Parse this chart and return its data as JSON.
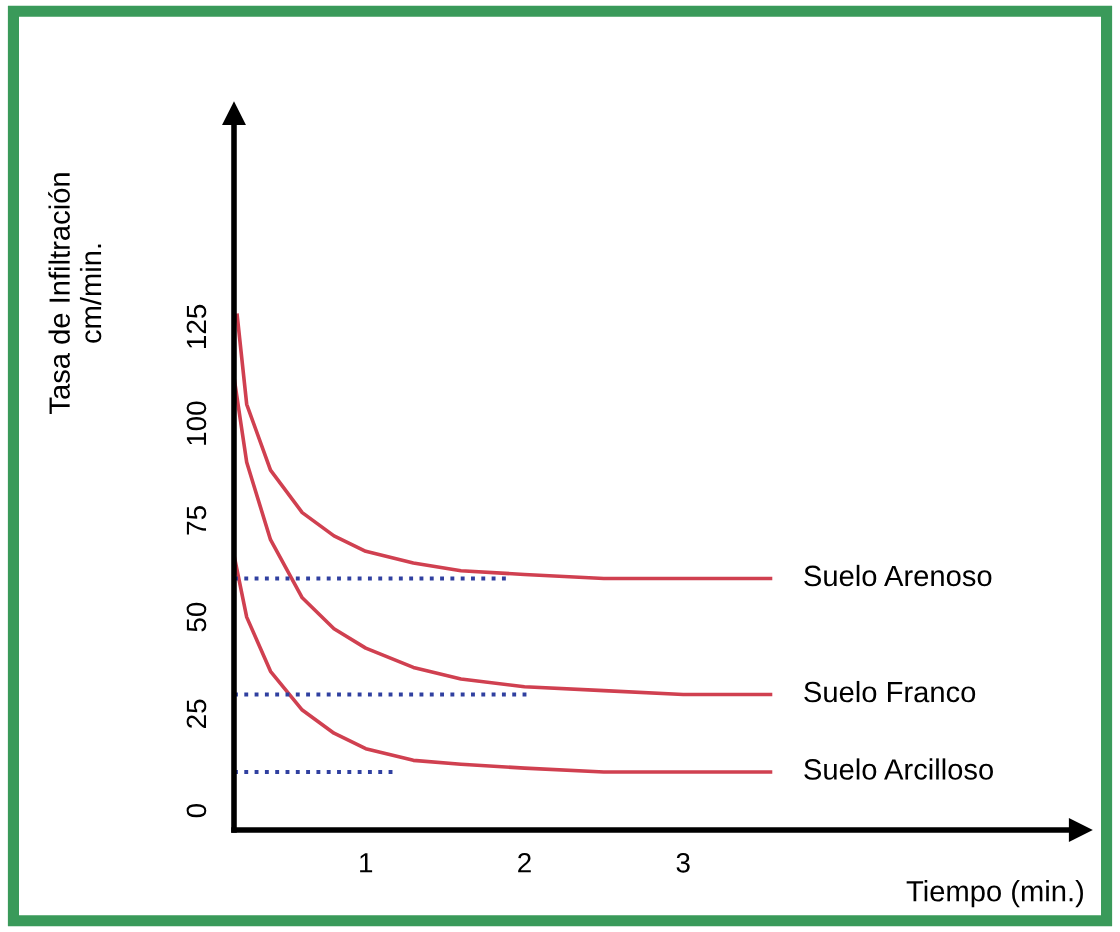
{
  "chart_data": {
    "type": "line",
    "xlabel": "Tiempo (min.)",
    "ylabel": "Tasa de Infiltración\ncm/min.",
    "xlim": [
      0.17,
      5.5
    ],
    "ylim": [
      -5,
      180
    ],
    "xticks": [
      1,
      2,
      3
    ],
    "yticks": [
      0,
      25,
      50,
      75,
      100,
      125
    ],
    "grid": false,
    "marker": "none",
    "series": [
      {
        "name": "Suelo Arenoso",
        "color": "#d04050",
        "line_style": "solid",
        "x": [
          0.19,
          0.25,
          0.4,
          0.6,
          0.8,
          1.0,
          1.3,
          1.6,
          2.0,
          2.5,
          3.0,
          3.55
        ],
        "values": [
          128,
          105,
          88,
          77,
          71,
          67,
          64,
          62,
          61,
          60,
          60,
          60
        ]
      },
      {
        "name": "Suelo Franco",
        "color": "#d04050",
        "line_style": "solid",
        "x": [
          0.17,
          0.25,
          0.4,
          0.6,
          0.8,
          1.0,
          1.3,
          1.6,
          2.0,
          2.5,
          3.0,
          3.55
        ],
        "values": [
          112,
          90,
          70,
          55,
          47,
          42,
          37,
          34,
          32,
          31,
          30,
          30
        ]
      },
      {
        "name": "Suelo Arcilloso",
        "color": "#d04050",
        "line_style": "solid",
        "x": [
          0.17,
          0.25,
          0.4,
          0.6,
          0.8,
          1.0,
          1.3,
          1.6,
          2.0,
          2.5,
          3.0,
          3.55
        ],
        "values": [
          66,
          50,
          36,
          26,
          20,
          16,
          13,
          12,
          11,
          10,
          10,
          10
        ]
      },
      {
        "color": "#3040a0",
        "line_style": "dotted",
        "x": [
          0.17,
          1.9
        ],
        "values": [
          60,
          60
        ]
      },
      {
        "color": "#3040a0",
        "line_style": "dotted",
        "x": [
          0.17,
          2.05
        ],
        "values": [
          30,
          30
        ]
      },
      {
        "color": "#3040a0",
        "line_style": "dotted",
        "x": [
          0.17,
          1.2
        ],
        "values": [
          10,
          10
        ]
      }
    ]
  }
}
